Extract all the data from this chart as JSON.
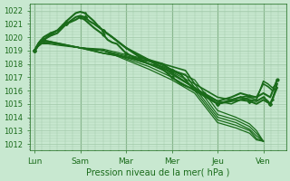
{
  "bg_color": "#c8e8d0",
  "grid_color": "#a0c8a8",
  "line_color": "#1a6b1a",
  "title": "Pression niveau de la mer( hPa )",
  "ylim": [
    1011.5,
    1022.5
  ],
  "yticks": [
    1012,
    1013,
    1014,
    1015,
    1016,
    1017,
    1018,
    1019,
    1020,
    1021,
    1022
  ],
  "xtick_labels": [
    "Lun",
    "Sam",
    "Mar",
    "Mer",
    "Jeu",
    "Ven"
  ],
  "xtick_positions": [
    0,
    1,
    2,
    3,
    4,
    5
  ],
  "xlim": [
    -0.1,
    5.5
  ],
  "lines": [
    {
      "x": [
        0,
        0.08,
        0.15,
        0.3,
        0.5,
        1.0,
        1.5,
        2.0,
        2.5,
        3.0,
        3.5,
        4.0,
        4.4,
        4.7,
        4.85,
        5.0
      ],
      "y": [
        1019,
        1019.3,
        1019.5,
        1019.5,
        1019.4,
        1019.2,
        1019.1,
        1018.7,
        1018.3,
        1017.6,
        1016.8,
        1014.5,
        1014.0,
        1013.5,
        1013.0,
        1012.2
      ],
      "lw": 0.9,
      "marker": null
    },
    {
      "x": [
        0,
        0.08,
        0.15,
        0.3,
        0.5,
        1.0,
        1.5,
        2.0,
        2.5,
        3.0,
        3.5,
        4.0,
        4.4,
        4.7,
        4.85,
        5.0
      ],
      "y": [
        1019,
        1019.3,
        1019.5,
        1019.6,
        1019.5,
        1019.2,
        1019.0,
        1018.6,
        1018.2,
        1017.4,
        1016.5,
        1014.2,
        1013.8,
        1013.3,
        1012.8,
        1012.2
      ],
      "lw": 0.9,
      "marker": null
    },
    {
      "x": [
        0,
        0.08,
        0.15,
        0.3,
        0.5,
        1.0,
        1.5,
        2.0,
        2.5,
        3.0,
        3.5,
        4.0,
        4.4,
        4.7,
        4.85,
        5.0
      ],
      "y": [
        1019,
        1019.3,
        1019.5,
        1019.6,
        1019.5,
        1019.2,
        1019.0,
        1018.5,
        1018.0,
        1017.2,
        1016.2,
        1014.0,
        1013.6,
        1013.1,
        1012.6,
        1012.2
      ],
      "lw": 0.9,
      "marker": null
    },
    {
      "x": [
        0,
        0.08,
        0.15,
        0.3,
        0.5,
        1.0,
        1.5,
        2.0,
        2.5,
        3.0,
        3.5,
        4.0,
        4.4,
        4.7,
        4.85,
        5.0
      ],
      "y": [
        1019,
        1019.4,
        1019.6,
        1019.6,
        1019.5,
        1019.2,
        1019.0,
        1018.4,
        1017.8,
        1017.0,
        1016.0,
        1013.8,
        1013.4,
        1013.0,
        1012.4,
        1012.2
      ],
      "lw": 0.9,
      "marker": null
    },
    {
      "x": [
        0,
        0.08,
        0.15,
        0.3,
        0.5,
        1.0,
        1.5,
        2.0,
        2.5,
        3.0,
        3.5,
        4.0,
        4.4,
        4.7,
        4.85,
        5.0
      ],
      "y": [
        1019,
        1019.4,
        1019.6,
        1019.7,
        1019.5,
        1019.2,
        1019.0,
        1018.3,
        1017.6,
        1016.8,
        1015.8,
        1013.6,
        1013.2,
        1012.8,
        1012.3,
        1012.2
      ],
      "lw": 0.9,
      "marker": null
    },
    {
      "x": [
        0,
        0.08,
        0.15,
        1.0,
        1.5,
        2.0,
        2.5,
        2.8,
        3.0,
        3.3,
        3.5,
        4.0,
        4.3,
        4.5,
        4.7,
        4.85,
        5.0,
        5.1,
        5.2,
        5.3
      ],
      "y": [
        1019,
        1019.5,
        1019.8,
        1019.2,
        1018.8,
        1018.5,
        1018.2,
        1018.0,
        1017.8,
        1017.5,
        1016.5,
        1015.5,
        1015.3,
        1015.5,
        1015.6,
        1015.5,
        1016.5,
        1016.3,
        1016.0,
        1016.2
      ],
      "lw": 1.2,
      "marker": null
    },
    {
      "x": [
        0,
        0.08,
        0.15,
        1.0,
        1.5,
        2.0,
        2.5,
        2.8,
        3.0,
        3.3,
        3.5,
        4.0,
        4.3,
        4.5,
        4.7,
        4.85,
        5.0,
        5.1,
        5.2,
        5.3
      ],
      "y": [
        1019,
        1019.5,
        1019.8,
        1019.2,
        1018.8,
        1018.5,
        1018.0,
        1017.8,
        1017.5,
        1017.2,
        1016.2,
        1015.2,
        1015.0,
        1015.3,
        1015.5,
        1015.3,
        1016.7,
        1016.5,
        1016.2,
        1016.5
      ],
      "lw": 1.1,
      "marker": null
    },
    {
      "x": [
        0,
        0.05,
        0.1,
        0.2,
        0.35,
        0.5,
        0.7,
        0.9,
        1.0,
        1.1,
        1.2,
        1.3,
        1.4,
        1.5,
        1.7,
        2.0,
        2.5,
        3.0,
        3.5,
        4.0,
        4.3,
        4.5,
        4.7,
        4.85,
        5.0,
        5.1,
        5.15,
        5.2,
        5.3
      ],
      "y": [
        1019,
        1019.2,
        1019.5,
        1019.8,
        1020.2,
        1020.5,
        1021.2,
        1021.8,
        1021.9,
        1021.8,
        1021.5,
        1021.2,
        1020.8,
        1020.5,
        1020.0,
        1019.2,
        1018.3,
        1017.3,
        1016.2,
        1015.0,
        1015.3,
        1015.5,
        1015.3,
        1015.2,
        1015.5,
        1015.2,
        1015.0,
        1015.3,
        1016.5
      ],
      "lw": 1.5,
      "marker": "+"
    },
    {
      "x": [
        0,
        0.05,
        0.1,
        0.2,
        0.35,
        0.5,
        0.7,
        0.9,
        1.0,
        1.1,
        1.2,
        1.3,
        1.5,
        1.7,
        2.0,
        2.3,
        2.5,
        2.8,
        3.0,
        3.2,
        3.5,
        4.0,
        4.3,
        4.5,
        4.7,
        4.85,
        5.0,
        5.15,
        5.3
      ],
      "y": [
        1019,
        1019.2,
        1019.5,
        1019.8,
        1020.1,
        1020.3,
        1021.0,
        1021.5,
        1021.6,
        1021.5,
        1021.2,
        1021.0,
        1020.5,
        1020.0,
        1019.2,
        1018.5,
        1018.3,
        1018.0,
        1017.5,
        1017.2,
        1016.0,
        1015.0,
        1015.2,
        1015.3,
        1015.2,
        1015.0,
        1015.3,
        1015.0,
        1016.2
      ],
      "lw": 1.5,
      "marker": "D"
    },
    {
      "x": [
        0,
        0.05,
        0.1,
        0.2,
        0.35,
        0.5,
        0.7,
        0.9,
        1.0,
        1.1,
        1.2,
        1.3,
        1.5,
        1.6,
        1.7,
        1.8,
        2.0,
        2.3,
        2.5,
        2.8,
        3.0,
        3.2,
        3.4,
        3.5,
        3.7,
        4.0,
        4.3,
        4.5,
        4.7,
        4.85,
        5.0,
        5.15,
        5.3
      ],
      "y": [
        1019,
        1019.3,
        1019.6,
        1020.0,
        1020.3,
        1020.5,
        1021.0,
        1021.3,
        1021.5,
        1021.3,
        1021.0,
        1020.7,
        1020.2,
        1019.8,
        1019.6,
        1019.5,
        1018.8,
        1018.3,
        1018.0,
        1017.6,
        1017.0,
        1016.5,
        1016.2,
        1016.0,
        1015.8,
        1015.2,
        1015.5,
        1015.8,
        1015.6,
        1015.5,
        1015.8,
        1015.5,
        1016.8
      ],
      "lw": 1.5,
      "marker": "o"
    }
  ]
}
